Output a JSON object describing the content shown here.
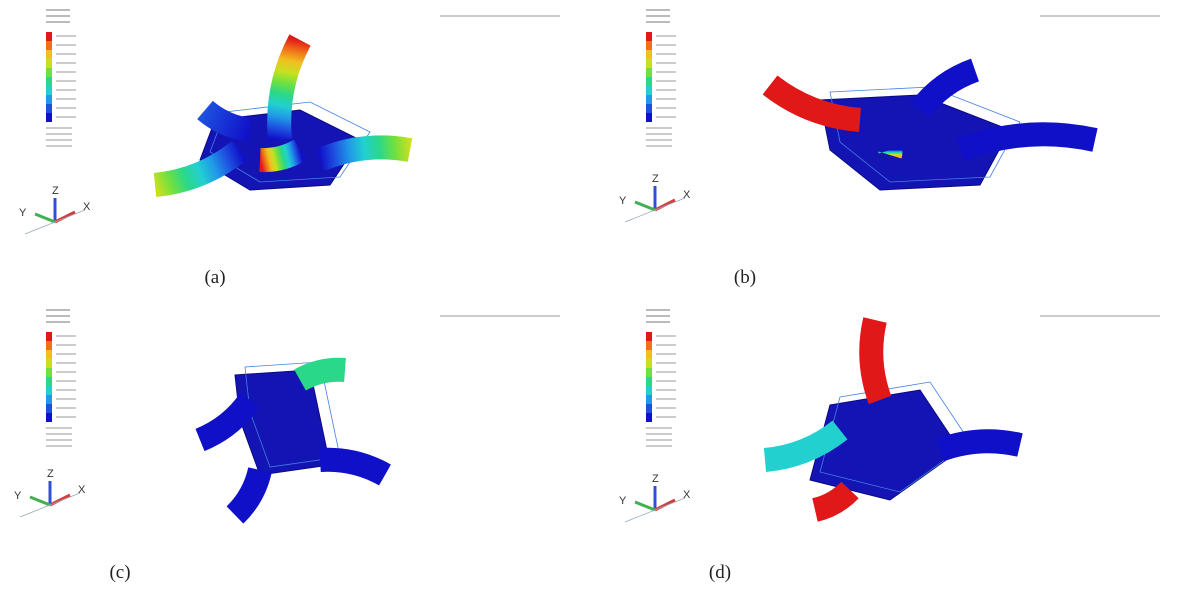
{
  "panels": [
    {
      "label": "(a)",
      "axes": {
        "x": "X",
        "y": "Y",
        "z": "Z"
      }
    },
    {
      "label": "(b)",
      "axes": {
        "x": "X",
        "y": "Y",
        "z": "Z"
      }
    },
    {
      "label": "(c)",
      "axes": {
        "x": "X",
        "y": "Y",
        "z": "Z"
      }
    },
    {
      "label": "(d)",
      "axes": {
        "x": "X",
        "y": "Y",
        "z": "Z"
      }
    }
  ]
}
